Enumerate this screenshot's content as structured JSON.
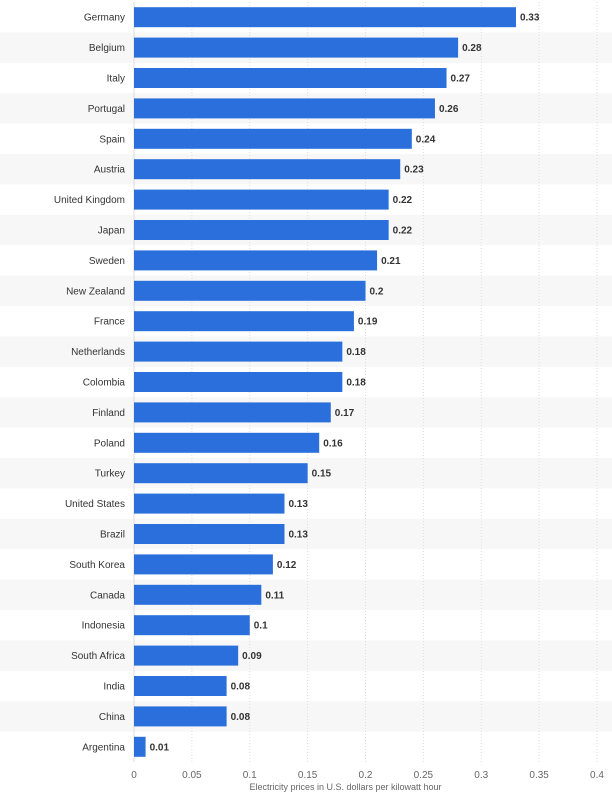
{
  "chart_data": {
    "type": "bar",
    "orientation": "horizontal",
    "categories": [
      "Germany",
      "Belgium",
      "Italy",
      "Portugal",
      "Spain",
      "Austria",
      "United Kingdom",
      "Japan",
      "Sweden",
      "New Zealand",
      "France",
      "Netherlands",
      "Colombia",
      "Finland",
      "Poland",
      "Turkey",
      "United States",
      "Brazil",
      "South Korea",
      "Canada",
      "Indonesia",
      "South Africa",
      "India",
      "China",
      "Argentina"
    ],
    "values": [
      0.33,
      0.28,
      0.27,
      0.26,
      0.24,
      0.23,
      0.22,
      0.22,
      0.21,
      0.2,
      0.19,
      0.18,
      0.18,
      0.17,
      0.16,
      0.15,
      0.13,
      0.13,
      0.12,
      0.11,
      0.1,
      0.09,
      0.08,
      0.08,
      0.01
    ],
    "value_labels": [
      "0.33",
      "0.28",
      "0.27",
      "0.26",
      "0.24",
      "0.23",
      "0.22",
      "0.22",
      "0.21",
      "0.2",
      "0.19",
      "0.18",
      "0.18",
      "0.17",
      "0.16",
      "0.15",
      "0.13",
      "0.13",
      "0.12",
      "0.11",
      "0.1",
      "0.09",
      "0.08",
      "0.08",
      "0.01"
    ],
    "xlabel": "Electricity prices in U.S. dollars per kilowatt hour",
    "ylabel": "",
    "xlim": [
      0,
      0.4
    ],
    "xticks": [
      0,
      0.05,
      0.1,
      0.15,
      0.2,
      0.25,
      0.3,
      0.35,
      0.4
    ],
    "xtick_labels": [
      "0",
      "0.05",
      "0.1",
      "0.15",
      "0.2",
      "0.25",
      "0.3",
      "0.35",
      "0.4"
    ],
    "grid": true,
    "colors": {
      "bar": "#2a6fdb",
      "band_alt": "#f7f7f7",
      "grid": "#dddddd",
      "text": "#333333"
    }
  }
}
